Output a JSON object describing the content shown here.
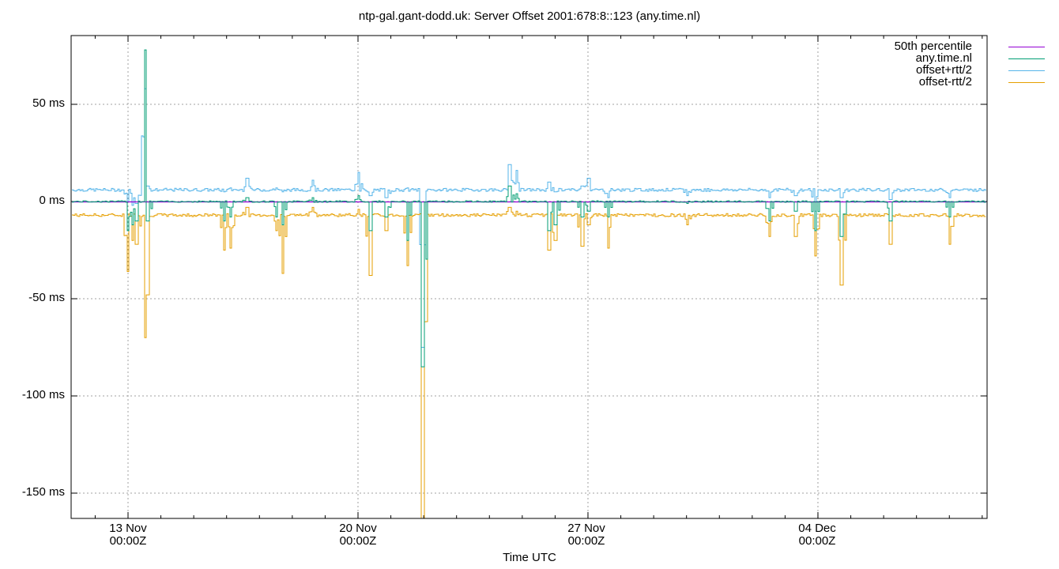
{
  "chart_data": {
    "type": "line",
    "title": "ntp-gal.gant-dodd.uk: Server Offset 2001:678:8::123 (any.time.nl)",
    "xlabel": "Time UTC",
    "ylabel": "",
    "ylim": [
      -163,
      85
    ],
    "yticks": [
      {
        "value": 50,
        "label": "50 ms"
      },
      {
        "value": 0,
        "label": "0 ms"
      },
      {
        "value": -50,
        "label": "-50 ms"
      },
      {
        "value": -100,
        "label": "-100 ms"
      },
      {
        "value": -150,
        "label": "-150 ms"
      }
    ],
    "xticks": [
      {
        "day": 0,
        "label1": "13 Nov",
        "label2": "00:00Z"
      },
      {
        "day": 7,
        "label1": "20 Nov",
        "label2": "00:00Z"
      },
      {
        "day": 14,
        "label1": "27 Nov",
        "label2": "00:00Z"
      },
      {
        "day": 21,
        "label1": "04 Dec",
        "label2": "00:00Z"
      }
    ],
    "xrange_days_from_13nov": [
      -1.73,
      26.15
    ],
    "grid": true,
    "legend_position": "top-right",
    "series": [
      {
        "name": "50th percentile",
        "color": "#9400d3",
        "baseline_ms": 0.0
      },
      {
        "name": "any.time.nl",
        "color": "#009e73",
        "baseline_ms": 0.0
      },
      {
        "name": "offset+rtt/2",
        "color": "#56b4e9",
        "baseline_ms": 6.0
      },
      {
        "name": "offset-rtt/2",
        "color": "#e69f00",
        "baseline_ms": -7.0
      }
    ],
    "spikes": [
      {
        "day": -0.02,
        "offset": -15,
        "upper": 0,
        "lower": -36
      },
      {
        "day": 0.12,
        "offset": -12,
        "upper": -2,
        "lower": -20
      },
      {
        "day": 0.25,
        "offset": -10,
        "upper": -1,
        "lower": -22
      },
      {
        "day": 0.52,
        "offset": 78,
        "upper": 85,
        "lower": -70
      },
      {
        "day": 0.58,
        "offset": -10,
        "upper": 8,
        "lower": -48
      },
      {
        "day": 2.9,
        "offset": -10,
        "upper": 5,
        "lower": -25
      },
      {
        "day": 3.1,
        "offset": -8,
        "upper": 7,
        "lower": -24
      },
      {
        "day": 3.6,
        "offset": 2,
        "upper": 12,
        "lower": -3
      },
      {
        "day": 4.5,
        "offset": -8,
        "upper": 7,
        "lower": -15
      },
      {
        "day": 4.7,
        "offset": -12,
        "upper": 5,
        "lower": -37
      },
      {
        "day": 5.6,
        "offset": 2,
        "upper": 11,
        "lower": -3
      },
      {
        "day": 7.0,
        "offset": 3,
        "upper": 15,
        "lower": -4
      },
      {
        "day": 7.35,
        "offset": -15,
        "upper": 3,
        "lower": -38
      },
      {
        "day": 7.85,
        "offset": -8,
        "upper": 2,
        "lower": -15
      },
      {
        "day": 8.5,
        "offset": -20,
        "upper": 7,
        "lower": -33
      },
      {
        "day": 8.95,
        "offset": -85,
        "upper": -75,
        "lower": -163
      },
      {
        "day": 11.6,
        "offset": 8,
        "upper": 19,
        "lower": -3
      },
      {
        "day": 11.8,
        "offset": 4,
        "upper": 16,
        "lower": -5
      },
      {
        "day": 12.8,
        "offset": -15,
        "upper": 10,
        "lower": -25
      },
      {
        "day": 13.0,
        "offset": -12,
        "upper": 5,
        "lower": -20
      },
      {
        "day": 13.8,
        "offset": -8,
        "upper": 8,
        "lower": -23
      },
      {
        "day": 14.0,
        "offset": -5,
        "upper": 12,
        "lower": -12
      },
      {
        "day": 14.6,
        "offset": -8,
        "upper": 2,
        "lower": -24
      },
      {
        "day": 17.0,
        "offset": -1,
        "upper": 3,
        "lower": -12
      },
      {
        "day": 19.5,
        "offset": -10,
        "upper": 2,
        "lower": -18
      },
      {
        "day": 20.3,
        "offset": -5,
        "upper": 3,
        "lower": -18
      },
      {
        "day": 20.9,
        "offset": -15,
        "upper": -5,
        "lower": -28
      },
      {
        "day": 21.7,
        "offset": -18,
        "upper": 2,
        "lower": -43
      },
      {
        "day": 23.2,
        "offset": -10,
        "upper": 1,
        "lower": -22
      },
      {
        "day": 25.0,
        "offset": -8,
        "upper": 2,
        "lower": -22
      }
    ]
  },
  "legend": {
    "items": [
      {
        "label": "50th percentile",
        "color": "#9400d3"
      },
      {
        "label": "any.time.nl",
        "color": "#009e73"
      },
      {
        "label": "offset+rtt/2",
        "color": "#56b4e9"
      },
      {
        "label": "offset-rtt/2",
        "color": "#e69f00"
      }
    ]
  }
}
